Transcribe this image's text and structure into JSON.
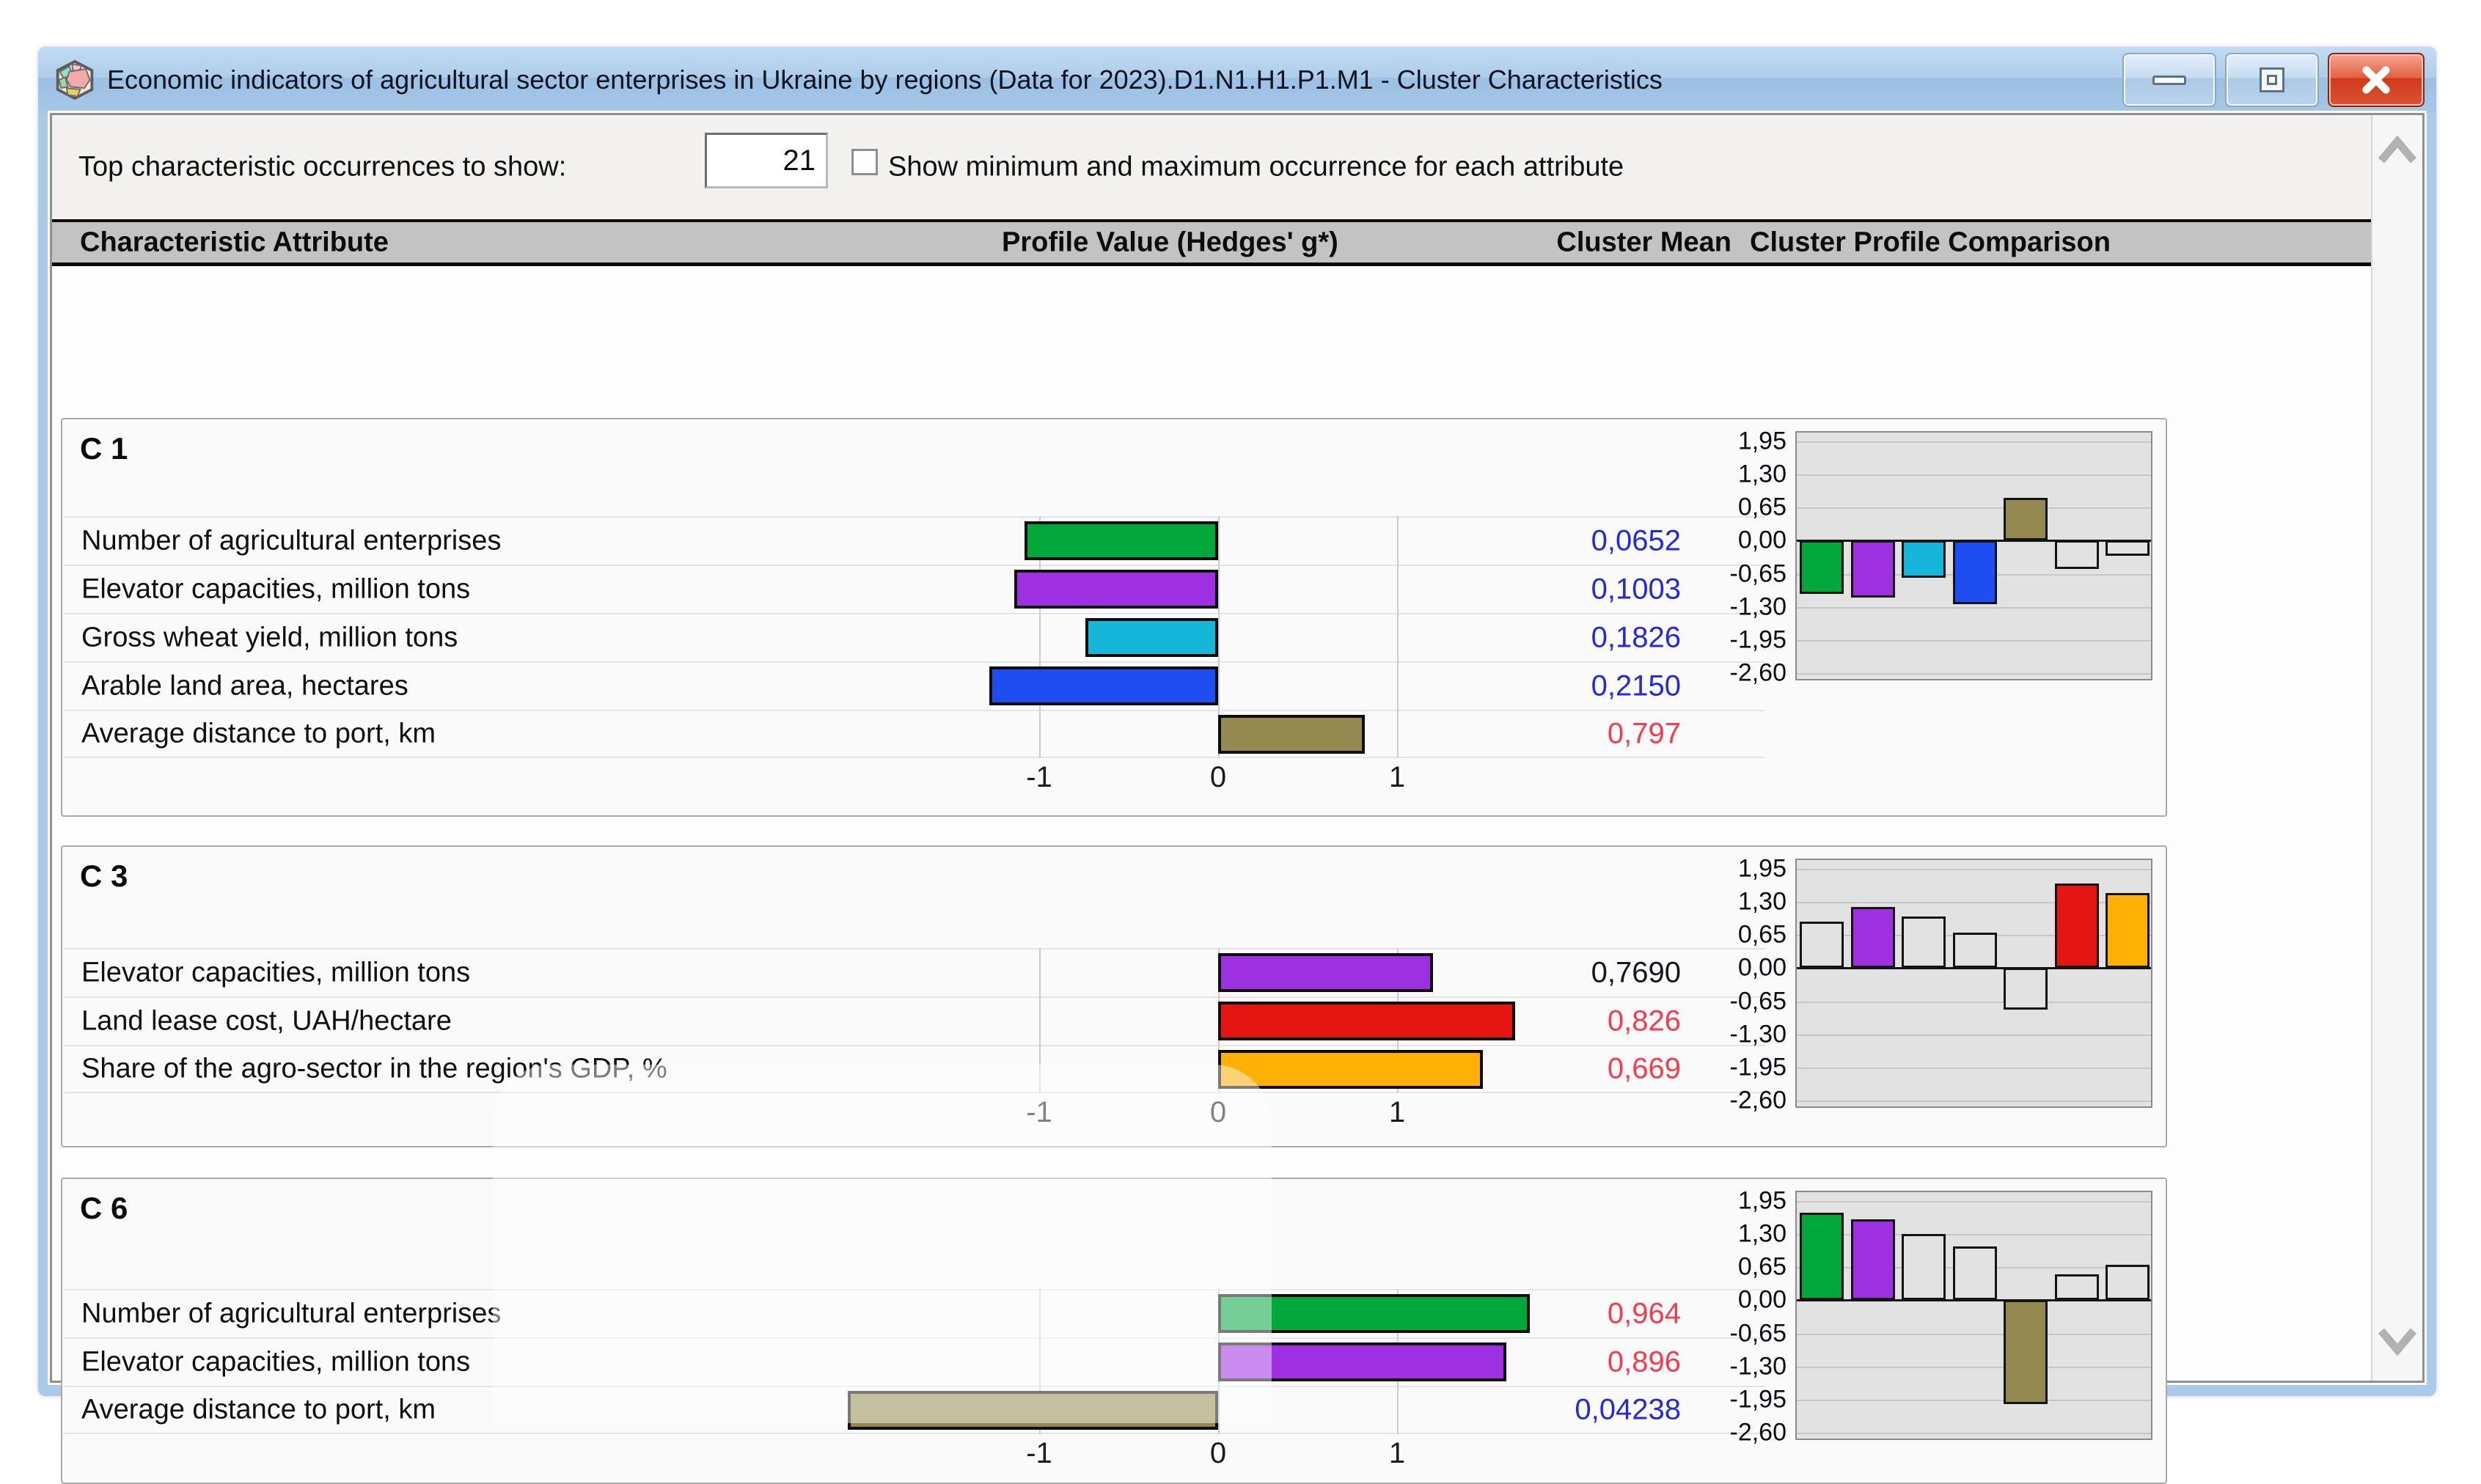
{
  "window": {
    "title": "Economic indicators of agricultural sector enterprises in Ukraine by regions (Data for 2023).D1.N1.H1.P1.M1 - Cluster Characteristics"
  },
  "controls": {
    "top_label": "Top characteristic occurrences to show:",
    "top_value": "21",
    "checkbox_label": "Show minimum and maximum occurrence for each attribute",
    "checkbox_checked": false
  },
  "table_header": {
    "attribute": "Characteristic Attribute",
    "profile_value": "Profile Value (Hedges' g*)",
    "cluster_mean": "Cluster Mean",
    "profile_comparison": "Cluster Profile Comparison"
  },
  "colors": {
    "green": "#00a83c",
    "purple": "#9d31e2",
    "cyan": "#16b5da",
    "blue": "#1e4ef2",
    "olive": "#948a50",
    "red": "#e51511",
    "orange": "#ffb005",
    "mean_blue": "#2428e0",
    "mean_red": "#f83b4c",
    "mean_black": "#15151f",
    "empty_bar": "#e2e2e2"
  },
  "profile_axis": {
    "tick_labels": [
      "-1",
      "0",
      "1"
    ],
    "tick_values": [
      -1,
      0,
      1
    ]
  },
  "comparison_axis": {
    "labels": [
      "1,95",
      "1,30",
      "0,65",
      "0,00",
      "-0,65",
      "-1,30",
      "-1,95",
      "-2,60"
    ],
    "values": [
      1.95,
      1.3,
      0.65,
      0.0,
      -0.65,
      -1.3,
      -1.95,
      -2.6
    ]
  },
  "clusters": [
    {
      "name": "C 1",
      "rows": [
        {
          "label": "Number of agricultural enterprises",
          "profile_value": -1.08,
          "color": "green",
          "mean": "0,0652",
          "mean_style": "mean_blue"
        },
        {
          "label": "Elevator capacities, million tons",
          "profile_value": -1.14,
          "color": "purple",
          "mean": "0,1003",
          "mean_style": "mean_blue"
        },
        {
          "label": "Gross wheat yield, million tons",
          "profile_value": -0.74,
          "color": "cyan",
          "mean": "0,1826",
          "mean_style": "mean_blue"
        },
        {
          "label": "Arable land area, hectares",
          "profile_value": -1.28,
          "color": "blue",
          "mean": "0,2150",
          "mean_style": "mean_blue"
        },
        {
          "label": "Average distance to port, km",
          "profile_value": 0.82,
          "color": "olive",
          "mean": "0,797",
          "mean_style": "mean_red"
        }
      ],
      "comparison": {
        "values": [
          -1.05,
          -1.12,
          -0.73,
          -1.25,
          0.84,
          -0.55,
          -0.3
        ],
        "colors": [
          "green",
          "purple",
          "cyan",
          "blue",
          "olive",
          null,
          null
        ]
      }
    },
    {
      "name": "C 3",
      "rows": [
        {
          "label": "Elevator capacities, million tons",
          "profile_value": 1.2,
          "color": "purple",
          "mean": "0,7690",
          "mean_style": "mean_black"
        },
        {
          "label": "Land lease cost, UAH/hectare",
          "profile_value": 1.66,
          "color": "red",
          "mean": "0,826",
          "mean_style": "mean_red"
        },
        {
          "label": "Share of the agro-sector in the region's GDP, %",
          "profile_value": 1.48,
          "color": "orange",
          "mean": "0,669",
          "mean_style": "mean_red"
        }
      ],
      "comparison": {
        "values": [
          0.91,
          1.2,
          1.02,
          0.7,
          -0.82,
          1.66,
          1.48
        ],
        "colors": [
          null,
          "purple",
          null,
          null,
          null,
          "red",
          "orange"
        ]
      }
    },
    {
      "name": "C 6",
      "rows": [
        {
          "label": "Number of agricultural enterprises",
          "profile_value": 1.74,
          "color": "green",
          "mean": "0,964",
          "mean_style": "mean_red"
        },
        {
          "label": "Elevator capacities, million tons",
          "profile_value": 1.61,
          "color": "purple",
          "mean": "0,896",
          "mean_style": "mean_red"
        },
        {
          "label": "Average distance to port, km",
          "profile_value": -2.07,
          "color": "olive",
          "mean": "0,04238",
          "mean_style": "mean_blue"
        }
      ],
      "comparison": {
        "values": [
          1.72,
          1.59,
          1.31,
          1.06,
          -2.04,
          0.51,
          0.7
        ],
        "colors": [
          "green",
          "purple",
          null,
          null,
          "olive",
          null,
          null
        ]
      }
    }
  ]
}
